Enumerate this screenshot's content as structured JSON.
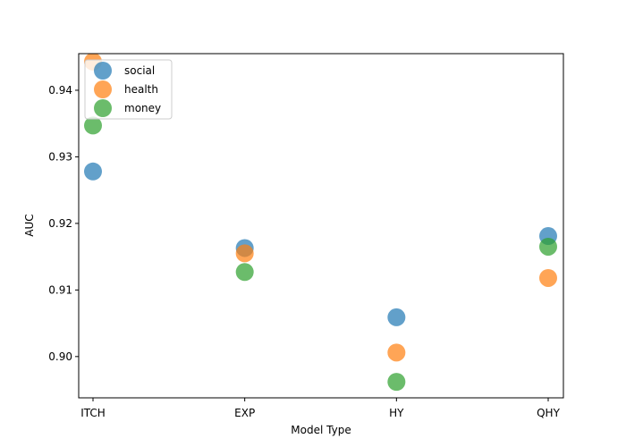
{
  "chart_data": {
    "type": "scatter",
    "title": "",
    "xlabel": "Model Type",
    "ylabel": "AUC",
    "categories": [
      "ITCH",
      "EXP",
      "HY",
      "QHY"
    ],
    "ylim": [
      0.8938,
      0.9455
    ],
    "yticks": [
      "0.90",
      "0.91",
      "0.92",
      "0.93",
      "0.94"
    ],
    "ytick_values": [
      0.9,
      0.91,
      0.92,
      0.93,
      0.94
    ],
    "grid": false,
    "legend": {
      "placement": "top-left"
    },
    "series": [
      {
        "name": "social",
        "color": "#1f77b4",
        "values": [
          0.9278,
          0.9163,
          0.9059,
          0.9181
        ]
      },
      {
        "name": "health",
        "color": "#ff7f0e",
        "values": [
          0.9443,
          0.9155,
          0.9006,
          0.9118
        ]
      },
      {
        "name": "money",
        "color": "#2ca02c",
        "values": [
          0.9347,
          0.9127,
          0.8962,
          0.9165
        ]
      }
    ]
  }
}
